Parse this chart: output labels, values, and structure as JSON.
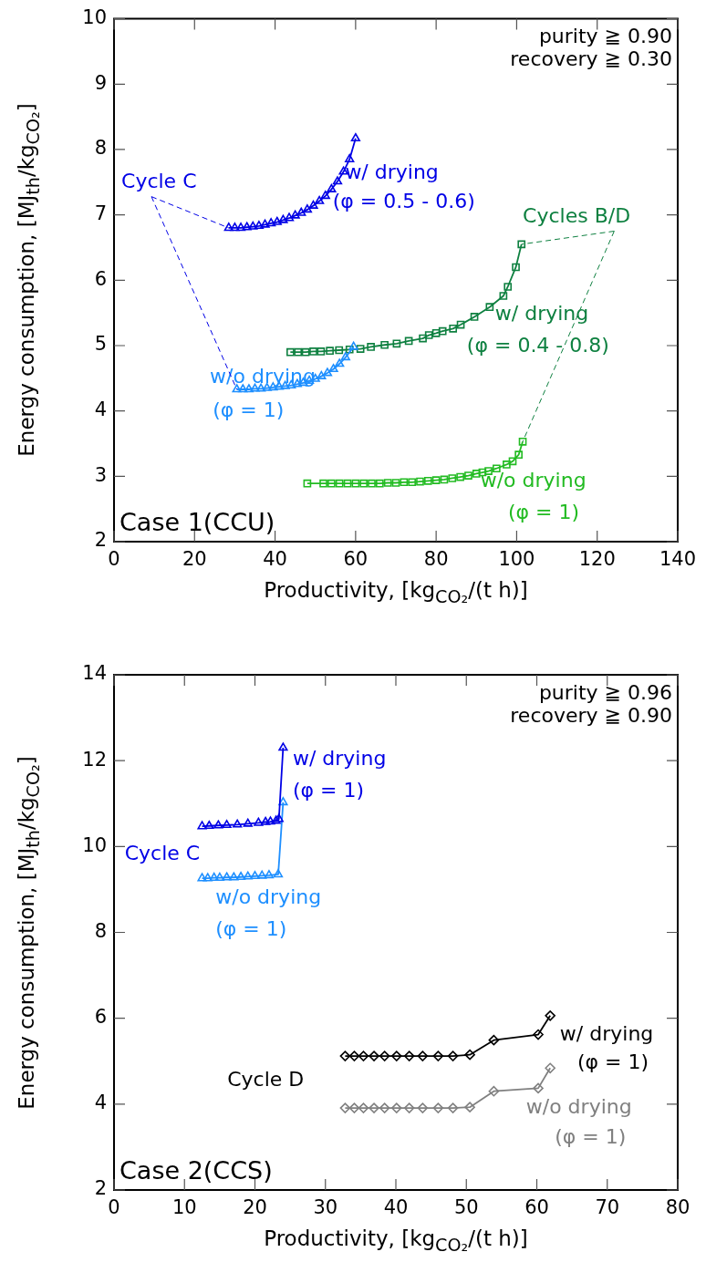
{
  "chart_data": [
    {
      "type": "line",
      "xlabel": "Productivity, [kg$_{CO₂}$/(t h)]",
      "ylabel": "Energy consumption, [MJ$_{th}$/kg$_{CO₂}$]",
      "xlim": [
        0,
        140
      ],
      "xticks": [
        0,
        20,
        40,
        60,
        80,
        100,
        120,
        140
      ],
      "ylim": [
        2,
        10
      ],
      "yticks": [
        2,
        3,
        4,
        5,
        6,
        7,
        8,
        9,
        10
      ],
      "grid": false,
      "legend": false,
      "line_style": "solid",
      "series": [
        {
          "color": "#0000e6",
          "marker": "triangle",
          "x": [
            28.5,
            30,
            31.5,
            33,
            34.5,
            36,
            37.5,
            39,
            40.5,
            42,
            43.5,
            45,
            46.5,
            48,
            49.5,
            51,
            52.5,
            54,
            55.5,
            57,
            58.5,
            60
          ],
          "values": [
            6.8,
            6.8,
            6.8,
            6.81,
            6.82,
            6.83,
            6.85,
            6.87,
            6.89,
            6.92,
            6.95,
            6.99,
            7.03,
            7.08,
            7.14,
            7.21,
            7.29,
            7.39,
            7.51,
            7.66,
            7.85,
            8.17
          ]
        },
        {
          "color": "#1e8fff",
          "marker": "triangle",
          "x": [
            30.5,
            32,
            33.5,
            35,
            36.5,
            38,
            39.5,
            41,
            42.5,
            44,
            45.5,
            47,
            48.5,
            50,
            51.5,
            53,
            54.5,
            56,
            57.5,
            59.5
          ],
          "values": [
            4.33,
            4.33,
            4.33,
            4.34,
            4.34,
            4.35,
            4.36,
            4.37,
            4.38,
            4.39,
            4.41,
            4.43,
            4.46,
            4.49,
            4.53,
            4.58,
            4.64,
            4.72,
            4.82,
            4.98
          ]
        },
        {
          "color": "#0e8040",
          "marker": "square",
          "x": [
            43.8,
            45.7,
            47.6,
            49.5,
            51.4,
            53.6,
            55.9,
            58.5,
            61.2,
            63.8,
            67.2,
            70.2,
            73.2,
            76.7,
            78.2,
            80,
            81.6,
            84.2,
            86.1,
            89.5,
            93.3,
            96.7,
            97.8,
            99.8,
            101.2
          ],
          "values": [
            4.9,
            4.9,
            4.9,
            4.91,
            4.91,
            4.92,
            4.93,
            4.94,
            4.95,
            4.98,
            5.01,
            5.03,
            5.07,
            5.11,
            5.16,
            5.19,
            5.22,
            5.26,
            5.32,
            5.44,
            5.59,
            5.76,
            5.9,
            6.2,
            6.55
          ]
        },
        {
          "color": "#22bb22",
          "marker": "square",
          "x": [
            48,
            52,
            54,
            56,
            58,
            60,
            62,
            64,
            66,
            68,
            70,
            72,
            74,
            76,
            78,
            80,
            82,
            84,
            86,
            88,
            90,
            91.5,
            93,
            95,
            97.5,
            99,
            100.5,
            101.5
          ],
          "values": [
            2.89,
            2.89,
            2.89,
            2.89,
            2.89,
            2.89,
            2.89,
            2.89,
            2.89,
            2.9,
            2.9,
            2.91,
            2.91,
            2.92,
            2.93,
            2.94,
            2.95,
            2.97,
            2.99,
            3.01,
            3.04,
            3.06,
            3.08,
            3.12,
            3.18,
            3.23,
            3.33,
            3.53
          ]
        }
      ],
      "annotations": [
        "purity ≧ 0.90",
        "recovery ≧ 0.30",
        "Case 1(CCU)",
        {
          "text": "Cycle C",
          "x": 28.5,
          "y": 6.8
        },
        "w/ drying",
        "(φ = 0.5 - 0.6)",
        {
          "text": "Cycles B/D",
          "x": 101.2,
          "y": 6.55
        },
        "w/ drying",
        "(φ = 0.4 - 0.8)",
        "w/o drying",
        "(φ = 1)",
        "w/o drying",
        "(φ = 1)"
      ]
    },
    {
      "type": "line",
      "xlabel": "Productivity, [kg$_{CO₂}$/(t h)]",
      "ylabel": "Energy consumption, [MJ$_{th}$/kg$_{CO₂}$]",
      "xlim": [
        0,
        80
      ],
      "xticks": [
        0,
        10,
        20,
        30,
        40,
        50,
        60,
        70,
        80
      ],
      "ylim": [
        2,
        14
      ],
      "yticks": [
        2,
        4,
        6,
        8,
        10,
        12,
        14
      ],
      "grid": false,
      "legend": false,
      "line_style": "solid",
      "series": [
        {
          "color": "#0000e6",
          "marker": "triangle",
          "x": [
            12.5,
            13.5,
            14.8,
            16,
            17.5,
            19,
            20.5,
            21.5,
            22.2,
            23,
            23.4,
            24
          ],
          "values": [
            10.47,
            10.48,
            10.49,
            10.5,
            10.51,
            10.53,
            10.55,
            10.57,
            10.58,
            10.6,
            10.64,
            12.3
          ]
        },
        {
          "color": "#1e8fff",
          "marker": "triangle",
          "x": [
            12.5,
            13.3,
            14.2,
            15,
            16,
            17,
            18,
            19,
            20,
            21,
            22,
            23.3,
            24
          ],
          "values": [
            9.26,
            9.26,
            9.27,
            9.27,
            9.28,
            9.28,
            9.29,
            9.3,
            9.31,
            9.32,
            9.33,
            9.35,
            11.03
          ]
        },
        {
          "color": "#000000",
          "marker": "diamond",
          "x": [
            32.8,
            34.1,
            35.4,
            36.9,
            38.4,
            40.1,
            41.9,
            43.8,
            46,
            48.1,
            50.5,
            53.9,
            60.2,
            61.9
          ],
          "values": [
            5.12,
            5.12,
            5.12,
            5.12,
            5.12,
            5.12,
            5.12,
            5.12,
            5.12,
            5.12,
            5.15,
            5.49,
            5.62,
            6.06
          ]
        },
        {
          "color": "#808080",
          "marker": "diamond",
          "x": [
            32.8,
            34.1,
            35.4,
            36.9,
            38.4,
            40.1,
            41.9,
            43.8,
            46,
            48.1,
            50.5,
            53.9,
            60.2,
            61.9
          ],
          "values": [
            3.91,
            3.91,
            3.91,
            3.91,
            3.91,
            3.91,
            3.91,
            3.91,
            3.91,
            3.91,
            3.93,
            4.3,
            4.37,
            4.84
          ]
        }
      ],
      "annotations": [
        "purity ≧ 0.96",
        "recovery ≧ 0.90",
        "Case 2(CCS)",
        "Cycle C",
        "w/ drying",
        "(φ = 1)",
        "w/o drying",
        "(φ = 1)",
        "Cycle D",
        "w/ drying",
        "(φ = 1)",
        "w/o drying",
        "(φ = 1)"
      ]
    }
  ]
}
